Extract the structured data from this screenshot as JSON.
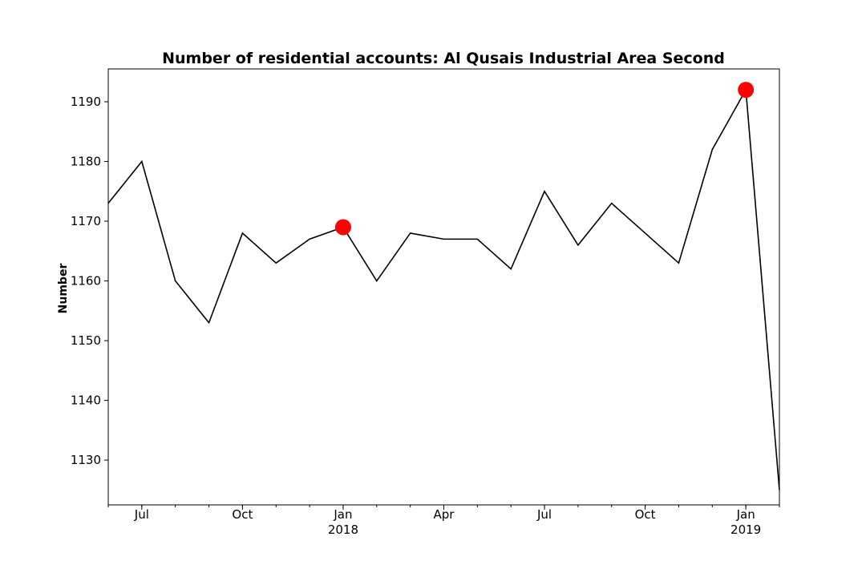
{
  "chart_data": {
    "type": "line",
    "title": "Number of residential accounts: Al Qusais Industrial Area Second",
    "xlabel": "",
    "ylabel": "Number",
    "x": [
      "2017-06",
      "2017-07",
      "2017-08",
      "2017-09",
      "2017-10",
      "2017-11",
      "2017-12",
      "2018-01",
      "2018-02",
      "2018-03",
      "2018-04",
      "2018-05",
      "2018-06",
      "2018-07",
      "2018-08",
      "2018-09",
      "2018-10",
      "2018-11",
      "2018-12",
      "2019-01",
      "2019-02"
    ],
    "series": [
      {
        "values": [
          1173,
          1180,
          1160,
          1153,
          1168,
          1163,
          1167,
          1169,
          1160,
          1168,
          1167,
          1167,
          1162,
          1175,
          1166,
          1173,
          1168,
          1163,
          1182,
          1192,
          1125
        ]
      }
    ],
    "highlighted_points": [
      {
        "x": "2018-01",
        "y": 1169
      },
      {
        "x": "2019-01",
        "y": 1192
      }
    ],
    "ylim": [
      1122.5,
      1195.5
    ],
    "yticks": [
      1130,
      1140,
      1150,
      1160,
      1170,
      1180,
      1190
    ],
    "xticks": [
      {
        "x": "2017-07",
        "label": "Jul",
        "sublabel": ""
      },
      {
        "x": "2017-10",
        "label": "Oct",
        "sublabel": ""
      },
      {
        "x": "2018-01",
        "label": "Jan",
        "sublabel": "2018"
      },
      {
        "x": "2018-04",
        "label": "Apr",
        "sublabel": ""
      },
      {
        "x": "2018-07",
        "label": "Jul",
        "sublabel": ""
      },
      {
        "x": "2018-10",
        "label": "Oct",
        "sublabel": ""
      },
      {
        "x": "2019-01",
        "label": "Jan",
        "sublabel": "2019"
      }
    ],
    "grid": false,
    "line_color": "#000000",
    "highlight_color": "#ff0000"
  }
}
